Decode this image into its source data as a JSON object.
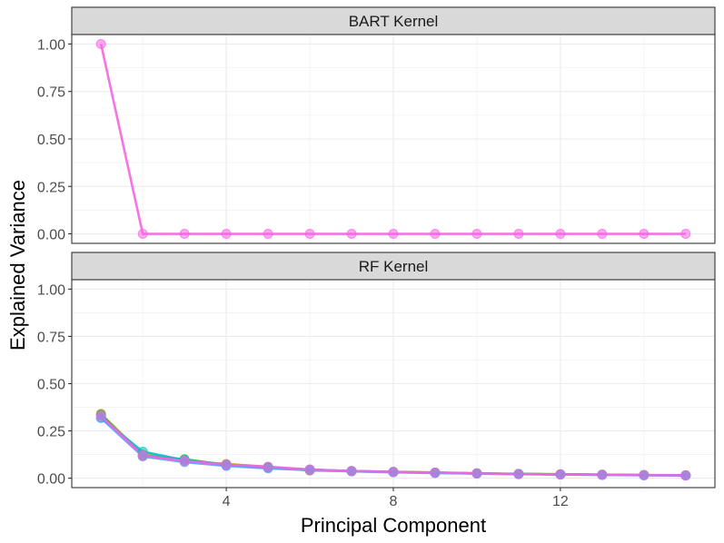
{
  "chart_data": {
    "type": "line",
    "xlabel": "Principal Component",
    "ylabel": "Explained Variance",
    "xlim": [
      0.3,
      15.7
    ],
    "ylim": [
      -0.05,
      1.05
    ],
    "x_ticks": [
      4,
      8,
      12
    ],
    "x_tick_labels": [
      "4",
      "8",
      "12"
    ],
    "y_ticks": [
      0,
      0.25,
      0.5,
      0.75,
      1
    ],
    "y_tick_labels": [
      "0.00",
      "0.25",
      "0.50",
      "0.75",
      "1.00"
    ],
    "grid": true,
    "legend": "none",
    "facets": [
      {
        "label": "BART Kernel",
        "series": [
          {
            "color": "#f564e3",
            "x": [
              1,
              2,
              3,
              4,
              5,
              6,
              7,
              8,
              9,
              10,
              11,
              12,
              13,
              14,
              15
            ],
            "values": [
              1.0,
              0.0,
              0.0,
              0.0,
              0.0,
              0.0,
              0.0,
              0.0,
              0.0,
              0.0,
              0.0,
              0.0,
              0.0,
              0.0,
              0.0
            ]
          }
        ]
      },
      {
        "label": "RF Kernel",
        "series": [
          {
            "color": "#b79f00",
            "x": [
              1,
              2,
              3,
              4,
              5,
              6,
              7,
              8,
              9,
              10,
              11,
              12,
              13,
              14,
              15
            ],
            "values": [
              0.34,
              0.125,
              0.09,
              0.075,
              0.06,
              0.04,
              0.038,
              0.034,
              0.03,
              0.026,
              0.023,
              0.021,
              0.019,
              0.017,
              0.015
            ]
          },
          {
            "color": "#00ba38",
            "x": [
              1,
              2,
              3,
              4,
              5,
              6,
              7,
              8,
              9,
              10,
              11,
              12,
              13,
              14,
              15
            ],
            "values": [
              0.335,
              0.118,
              0.1,
              0.07,
              0.058,
              0.045,
              0.037,
              0.033,
              0.029,
              0.025,
              0.022,
              0.02,
              0.018,
              0.016,
              0.015
            ]
          },
          {
            "color": "#00bfc4",
            "x": [
              1,
              2,
              3,
              4,
              5,
              6,
              7,
              8,
              9,
              10,
              11,
              12,
              13,
              14,
              15
            ],
            "values": [
              0.32,
              0.14,
              0.095,
              0.068,
              0.055,
              0.045,
              0.037,
              0.032,
              0.028,
              0.025,
              0.022,
              0.02,
              0.018,
              0.016,
              0.015
            ]
          },
          {
            "color": "#619cff",
            "x": [
              1,
              2,
              3,
              4,
              5,
              6,
              7,
              8,
              9,
              10,
              11,
              12,
              13,
              14,
              15
            ],
            "values": [
              0.318,
              0.115,
              0.085,
              0.065,
              0.052,
              0.043,
              0.036,
              0.031,
              0.027,
              0.024,
              0.021,
              0.019,
              0.017,
              0.015,
              0.014
            ]
          },
          {
            "color": "#f564e3",
            "x": [
              1,
              2,
              3,
              4,
              5,
              6,
              7,
              8,
              9,
              10,
              11,
              12,
              13,
              14,
              15
            ],
            "values": [
              0.33,
              0.12,
              0.092,
              0.072,
              0.06,
              0.046,
              0.038,
              0.033,
              0.029,
              0.025,
              0.022,
              0.02,
              0.018,
              0.016,
              0.015
            ]
          }
        ]
      }
    ]
  }
}
